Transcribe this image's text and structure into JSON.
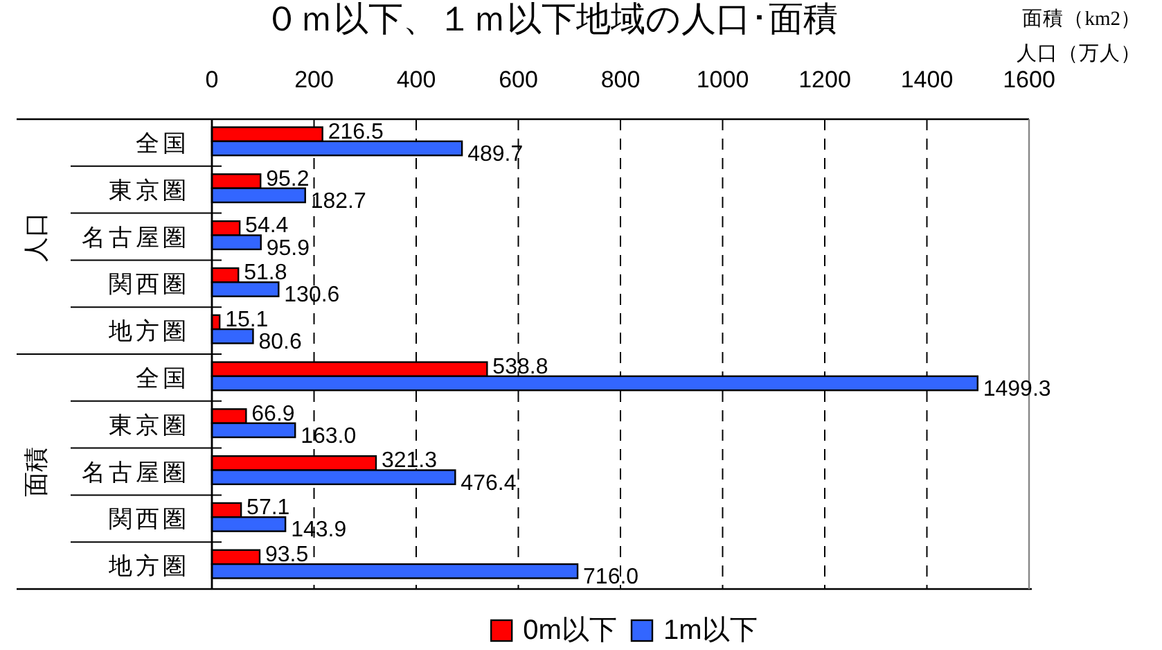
{
  "chart_data": {
    "type": "bar",
    "orientation": "horizontal",
    "title": "０ｍ以下、１ｍ以下地域の人口･面積",
    "xlabel": "面積（km2）人口（万人）",
    "categories": [
      "全国",
      "東京圏",
      "名古屋圏",
      "関西圏",
      "地方圏",
      "全国",
      "東京圏",
      "名古屋圏",
      "関西圏",
      "地方圏"
    ],
    "series": [
      {
        "name": "0m以下",
        "color": "#ff0000",
        "values": [
          216.5,
          95.2,
          54.4,
          51.8,
          15.1,
          538.8,
          66.9,
          321.3,
          57.1,
          93.5
        ],
        "value_labels": [
          "216.5",
          "95.2",
          "54.4",
          "51.8",
          "15.1",
          "538.8",
          "66.9",
          "321.3",
          "57.1",
          "93.5"
        ]
      },
      {
        "name": "1m以下",
        "color": "#3366ff",
        "values": [
          489.7,
          182.7,
          95.9,
          130.6,
          80.6,
          1499.3,
          163.0,
          476.4,
          143.9,
          716.0
        ],
        "value_labels": [
          "489.7",
          "182.7",
          "95.9",
          "130.6",
          "80.6",
          "1499.3",
          "163.0",
          "476.4",
          "143.9",
          "716.0"
        ]
      }
    ],
    "xlim": [
      0,
      1600
    ],
    "xticks": [
      0,
      200,
      400,
      600,
      800,
      1000,
      1200,
      1400,
      1600
    ],
    "grid": "x",
    "legend": "bottom",
    "annotations": [
      "人口",
      "面積"
    ]
  }
}
